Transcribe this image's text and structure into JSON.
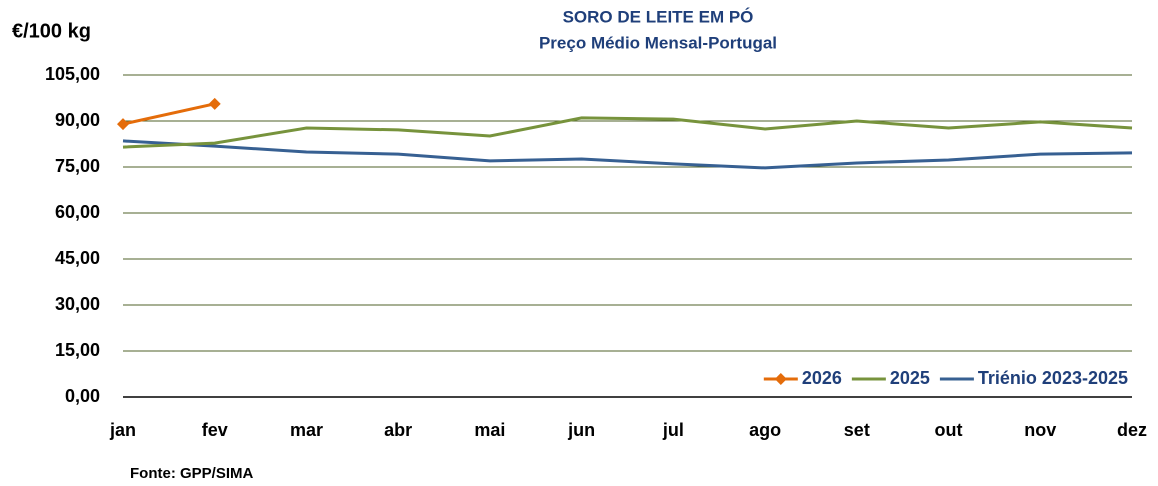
{
  "chart_data": {
    "type": "line",
    "title": "SORO DE LEITE EM PÓ",
    "subtitle": "Preço Médio Mensal-Portugal",
    "y_label": "€/100 kg",
    "source": "Fonte: GPP/SIMA",
    "categories": [
      "jan",
      "fev",
      "mar",
      "abr",
      "mai",
      "jun",
      "jul",
      "ago",
      "set",
      "out",
      "nov",
      "dez"
    ],
    "series": [
      {
        "name": "2026",
        "color": "#e46c0a",
        "marker": "diamond",
        "values": [
          89.0,
          95.6,
          null,
          null,
          null,
          null,
          null,
          null,
          null,
          null,
          null,
          null
        ]
      },
      {
        "name": "2025",
        "color": "#77933c",
        "values": [
          81.5,
          82.8,
          87.7,
          87.1,
          85.1,
          91.0,
          90.6,
          87.4,
          90.0,
          87.7,
          89.7,
          87.7
        ]
      },
      {
        "name": "Triénio 2023-2025",
        "color": "#376092",
        "values": [
          83.5,
          81.8,
          79.9,
          79.2,
          77.0,
          77.6,
          76.0,
          74.7,
          76.3,
          77.3,
          79.2,
          79.6
        ]
      }
    ],
    "ylim": [
      0,
      105
    ],
    "yticks": [
      {
        "value": 0,
        "label": "0,00"
      },
      {
        "value": 15,
        "label": "15,00"
      },
      {
        "value": 30,
        "label": "30,00"
      },
      {
        "value": 45,
        "label": "45,00"
      },
      {
        "value": 60,
        "label": "60,00"
      },
      {
        "value": 75,
        "label": "75,00"
      },
      {
        "value": 90,
        "label": "90,00"
      },
      {
        "value": 105,
        "label": "105,00"
      }
    ],
    "grid": true,
    "legend": "lower right"
  }
}
